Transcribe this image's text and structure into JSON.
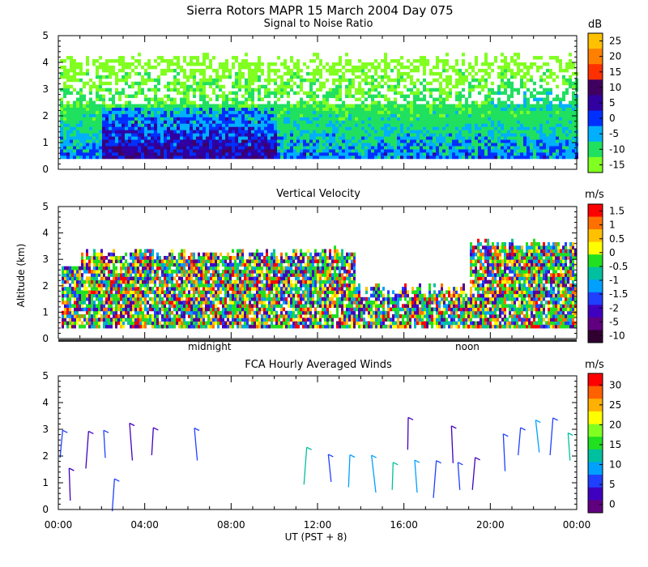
{
  "figure": {
    "title": "Sierra Rotors  MAPR 15 March 2004 Day 075",
    "ylabel": "Altitude (km)",
    "xlabel": "UT  (PST + 8)",
    "x_tick_labels": [
      "00:00",
      "04:00",
      "08:00",
      "12:00",
      "16:00",
      "20:00",
      "00:00"
    ],
    "x_markers": [
      "midnight",
      "noon"
    ]
  },
  "chart_data": [
    {
      "type": "heatmap",
      "title": "Signal to Noise Ratio",
      "units": "dB",
      "ylim": [
        0,
        5
      ],
      "y_ticks": [
        0,
        1,
        2,
        3,
        4,
        5
      ],
      "xlim_hours_ut": [
        0,
        24
      ],
      "colorbar_labels": [
        "25",
        "20",
        "15",
        "10",
        "5",
        "0",
        "-5",
        "-10",
        "-15"
      ],
      "colorbar_colors": [
        "#ffc000",
        "#ff8000",
        "#ff3000",
        "#400060",
        "#3000a0",
        "#0030ff",
        "#00b0ff",
        "#20e060",
        "#80ff20"
      ],
      "data_altitude_range_km": [
        0.4,
        4.3
      ],
      "profile_summary": [
        {
          "layer_km": [
            0.4,
            1.0
          ],
          "typical_db": -5
        },
        {
          "layer_km": [
            1.0,
            2.0
          ],
          "typical_db": 0
        },
        {
          "layer_km": [
            2.0,
            3.0
          ],
          "typical_db": -10
        },
        {
          "layer_km": [
            3.0,
            4.3
          ],
          "typical_db": -15
        }
      ]
    },
    {
      "type": "heatmap",
      "title": "Vertical Velocity",
      "units": "m/s",
      "ylim": [
        0,
        5
      ],
      "y_ticks": [
        0,
        1,
        2,
        3,
        4,
        5
      ],
      "xlim_hours_ut": [
        0,
        24
      ],
      "colorbar_labels": [
        "1.5",
        "1",
        "0.5",
        "0",
        "-0.5",
        "-1",
        "-1.5",
        "-2",
        "-5",
        "-10"
      ],
      "colorbar_colors": [
        "#ff0000",
        "#ff7000",
        "#ffc000",
        "#ffff00",
        "#20e020",
        "#00c0a0",
        "#00a0ff",
        "#2040ff",
        "#4000c0",
        "#600080",
        "#300030"
      ],
      "data_altitude_range_km": [
        0.4,
        3.8
      ]
    },
    {
      "type": "scatter",
      "title": "FCA Hourly Averaged Winds",
      "units": "m/s",
      "ylim": [
        0,
        5
      ],
      "y_ticks": [
        0,
        1,
        2,
        3,
        4,
        5
      ],
      "xlim_hours_ut": [
        0,
        24
      ],
      "colorbar_labels": [
        "30",
        "25",
        "20",
        "15",
        "10",
        "5",
        "0"
      ],
      "colorbar_colors": [
        "#ff0000",
        "#ff6000",
        "#ffb000",
        "#ffff00",
        "#80ff20",
        "#20e020",
        "#00c0a0",
        "#00a0ff",
        "#2040ff",
        "#4000c0",
        "#600080"
      ],
      "wind_barbs": [
        {
          "hour": 0.2,
          "alt_km": 2.5,
          "speed": 6
        },
        {
          "hour": 0.5,
          "alt_km": 1.0,
          "speed": 5
        },
        {
          "hour": 1.4,
          "alt_km": 2.3,
          "speed": 5
        },
        {
          "hour": 2.1,
          "alt_km": 2.5,
          "speed": 6
        },
        {
          "hour": 2.6,
          "alt_km": 0.6,
          "speed": 8
        },
        {
          "hour": 3.3,
          "alt_km": 2.6,
          "speed": 5
        },
        {
          "hour": 4.4,
          "alt_km": 2.6,
          "speed": 5
        },
        {
          "hour": 6.3,
          "alt_km": 2.5,
          "speed": 7
        },
        {
          "hour": 11.5,
          "alt_km": 1.7,
          "speed": 12
        },
        {
          "hour": 12.5,
          "alt_km": 1.6,
          "speed": 8
        },
        {
          "hour": 13.5,
          "alt_km": 1.5,
          "speed": 10
        },
        {
          "hour": 14.5,
          "alt_km": 1.4,
          "speed": 9
        },
        {
          "hour": 15.5,
          "alt_km": 1.3,
          "speed": 11
        },
        {
          "hour": 16.5,
          "alt_km": 1.3,
          "speed": 10
        },
        {
          "hour": 17.5,
          "alt_km": 1.2,
          "speed": 8
        },
        {
          "hour": 18.5,
          "alt_km": 1.3,
          "speed": 7
        },
        {
          "hour": 19.3,
          "alt_km": 1.4,
          "speed": 5
        },
        {
          "hour": 20.6,
          "alt_km": 2.2,
          "speed": 6
        },
        {
          "hour": 21.4,
          "alt_km": 2.6,
          "speed": 8
        },
        {
          "hour": 22.1,
          "alt_km": 2.8,
          "speed": 9
        },
        {
          "hour": 22.9,
          "alt_km": 2.8,
          "speed": 7
        },
        {
          "hour": 23.6,
          "alt_km": 2.4,
          "speed": 11
        },
        {
          "hour": 16.2,
          "alt_km": 2.9,
          "speed": 4
        },
        {
          "hour": 18.2,
          "alt_km": 2.5,
          "speed": 5
        }
      ]
    }
  ]
}
